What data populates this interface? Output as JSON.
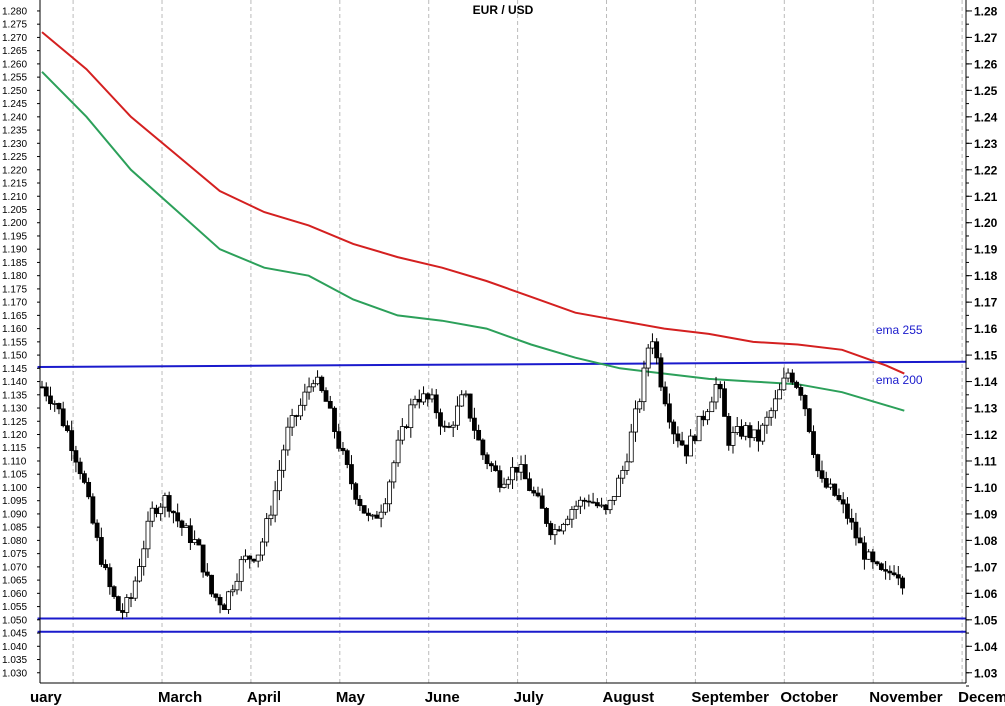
{
  "chart_data": {
    "type": "candlestick",
    "title": "EUR / USD",
    "ylim": [
      1.025,
      1.283
    ],
    "left_ticks": [
      "1.280",
      "1.275",
      "1.270",
      "1.265",
      "1.260",
      "1.255",
      "1.250",
      "1.245",
      "1.240",
      "1.235",
      "1.230",
      "1.225",
      "1.220",
      "1.215",
      "1.210",
      "1.205",
      "1.200",
      "1.195",
      "1.190",
      "1.185",
      "1.180",
      "1.175",
      "1.170",
      "1.165",
      "1.160",
      "1.155",
      "1.150",
      "1.145",
      "1.140",
      "1.135",
      "1.130",
      "1.125",
      "1.120",
      "1.115",
      "1.110",
      "1.105",
      "1.100",
      "1.095",
      "1.090",
      "1.085",
      "1.080",
      "1.075",
      "1.070",
      "1.065",
      "1.060",
      "1.055",
      "1.050",
      "1.045",
      "1.040",
      "1.035",
      "1.030"
    ],
    "right_ticks": [
      "1.28",
      "1.27",
      "1.26",
      "1.25",
      "1.24",
      "1.23",
      "1.22",
      "1.21",
      "1.20",
      "1.19",
      "1.18",
      "1.17",
      "1.16",
      "1.15",
      "1.14",
      "1.13",
      "1.12",
      "1.11",
      "1.10",
      "1.09",
      "1.08",
      "1.07",
      "1.06",
      "1.05",
      "1.04",
      "1.03"
    ],
    "months": [
      "uary",
      "March",
      "April",
      "May",
      "June",
      "July",
      "August",
      "September",
      "October",
      "November",
      "December"
    ],
    "month_positions": [
      0.0,
      1.0,
      2.0,
      3.0,
      4.0,
      5.0,
      6.0,
      7.0,
      8.0,
      9.0,
      10.0
    ],
    "month_label_offsets": [
      0.0,
      0.35,
      0.35,
      0.35,
      0.35,
      0.35,
      0.35,
      0.35,
      0.35,
      0.35,
      0.35
    ],
    "key_points": [
      {
        "t": 0.0,
        "p": 1.138
      },
      {
        "t": 0.15,
        "p": 1.132
      },
      {
        "t": 0.3,
        "p": 1.12
      },
      {
        "t": 0.45,
        "p": 1.105
      },
      {
        "t": 0.6,
        "p": 1.082
      },
      {
        "t": 0.75,
        "p": 1.063
      },
      {
        "t": 0.88,
        "p": 1.052
      },
      {
        "t": 1.0,
        "p": 1.058
      },
      {
        "t": 1.12,
        "p": 1.075
      },
      {
        "t": 1.25,
        "p": 1.092
      },
      {
        "t": 1.4,
        "p": 1.096
      },
      {
        "t": 1.55,
        "p": 1.086
      },
      {
        "t": 1.75,
        "p": 1.078
      },
      {
        "t": 1.9,
        "p": 1.06
      },
      {
        "t": 2.05,
        "p": 1.056
      },
      {
        "t": 2.25,
        "p": 1.072
      },
      {
        "t": 2.45,
        "p": 1.076
      },
      {
        "t": 2.6,
        "p": 1.095
      },
      {
        "t": 2.75,
        "p": 1.12
      },
      {
        "t": 2.9,
        "p": 1.13
      },
      {
        "t": 3.05,
        "p": 1.142
      },
      {
        "t": 3.2,
        "p": 1.132
      },
      {
        "t": 3.35,
        "p": 1.115
      },
      {
        "t": 3.5,
        "p": 1.1
      },
      {
        "t": 3.7,
        "p": 1.086
      },
      {
        "t": 3.85,
        "p": 1.095
      },
      {
        "t": 4.0,
        "p": 1.115
      },
      {
        "t": 4.2,
        "p": 1.135
      },
      {
        "t": 4.4,
        "p": 1.132
      },
      {
        "t": 4.55,
        "p": 1.12
      },
      {
        "t": 4.75,
        "p": 1.135
      },
      {
        "t": 4.95,
        "p": 1.113
      },
      {
        "t": 5.15,
        "p": 1.103
      },
      {
        "t": 5.35,
        "p": 1.108
      },
      {
        "t": 5.55,
        "p": 1.096
      },
      {
        "t": 5.75,
        "p": 1.083
      },
      {
        "t": 5.95,
        "p": 1.092
      },
      {
        "t": 6.15,
        "p": 1.096
      },
      {
        "t": 6.35,
        "p": 1.09
      },
      {
        "t": 6.55,
        "p": 1.108
      },
      {
        "t": 6.75,
        "p": 1.138
      },
      {
        "t": 6.85,
        "p": 1.16
      },
      {
        "t": 6.95,
        "p": 1.142
      },
      {
        "t": 7.1,
        "p": 1.122
      },
      {
        "t": 7.25,
        "p": 1.114
      },
      {
        "t": 7.45,
        "p": 1.128
      },
      {
        "t": 7.6,
        "p": 1.14
      },
      {
        "t": 7.72,
        "p": 1.118
      },
      {
        "t": 7.9,
        "p": 1.122
      },
      {
        "t": 8.05,
        "p": 1.118
      },
      {
        "t": 8.25,
        "p": 1.132
      },
      {
        "t": 8.4,
        "p": 1.144
      },
      {
        "t": 8.55,
        "p": 1.136
      },
      {
        "t": 8.65,
        "p": 1.12
      },
      {
        "t": 8.75,
        "p": 1.102
      },
      {
        "t": 8.9,
        "p": 1.098
      },
      {
        "t": 9.05,
        "p": 1.09
      },
      {
        "t": 9.2,
        "p": 1.078
      },
      {
        "t": 9.35,
        "p": 1.07
      },
      {
        "t": 9.48,
        "p": 1.066
      },
      {
        "t": 9.6,
        "p": 1.07
      },
      {
        "t": 9.68,
        "p": 1.065
      }
    ],
    "candle_count": 204,
    "ema_200": {
      "name": "ema 200",
      "color": "#2ca05a",
      "x": [
        0,
        0.5,
        1,
        1.5,
        2,
        2.5,
        3,
        3.5,
        4,
        4.5,
        5,
        5.5,
        6,
        6.5,
        7,
        7.5,
        8,
        8.5,
        9,
        9.5,
        9.7
      ],
      "y": [
        1.257,
        1.24,
        1.22,
        1.205,
        1.19,
        1.183,
        1.18,
        1.171,
        1.165,
        1.163,
        1.16,
        1.154,
        1.149,
        1.145,
        1.143,
        1.141,
        1.14,
        1.139,
        1.136,
        1.131,
        1.129
      ]
    },
    "ema_255": {
      "name": "ema 255",
      "color": "#d42020",
      "x": [
        0,
        0.5,
        1,
        1.5,
        2,
        2.5,
        3,
        3.5,
        4,
        4.5,
        5,
        5.5,
        6,
        6.5,
        7,
        7.5,
        8,
        8.5,
        9,
        9.5,
        9.7
      ],
      "y": [
        1.272,
        1.258,
        1.24,
        1.226,
        1.212,
        1.204,
        1.199,
        1.192,
        1.187,
        1.183,
        1.178,
        1.172,
        1.166,
        1.163,
        1.16,
        1.158,
        1.155,
        1.154,
        1.152,
        1.146,
        1.143
      ]
    },
    "ema_labels": [
      {
        "text": "ema 255",
        "x": 9.38,
        "y": 1.158
      },
      {
        "text": "ema 200",
        "x": 9.38,
        "y": 1.139
      }
    ],
    "horizontal_lines": [
      {
        "x0": -0.05,
        "y0": 1.1455,
        "x1": 10.4,
        "y1": 1.1475,
        "color": "#1a1acc"
      },
      {
        "x0": -0.05,
        "y0": 1.0505,
        "x1": 10.4,
        "y1": 1.0505,
        "color": "#1a1acc"
      },
      {
        "x0": -0.05,
        "y0": 1.0455,
        "x1": 10.4,
        "y1": 1.0455,
        "color": "#1a1acc"
      }
    ],
    "grid": true,
    "grid_orientation": "vertical, per month"
  }
}
